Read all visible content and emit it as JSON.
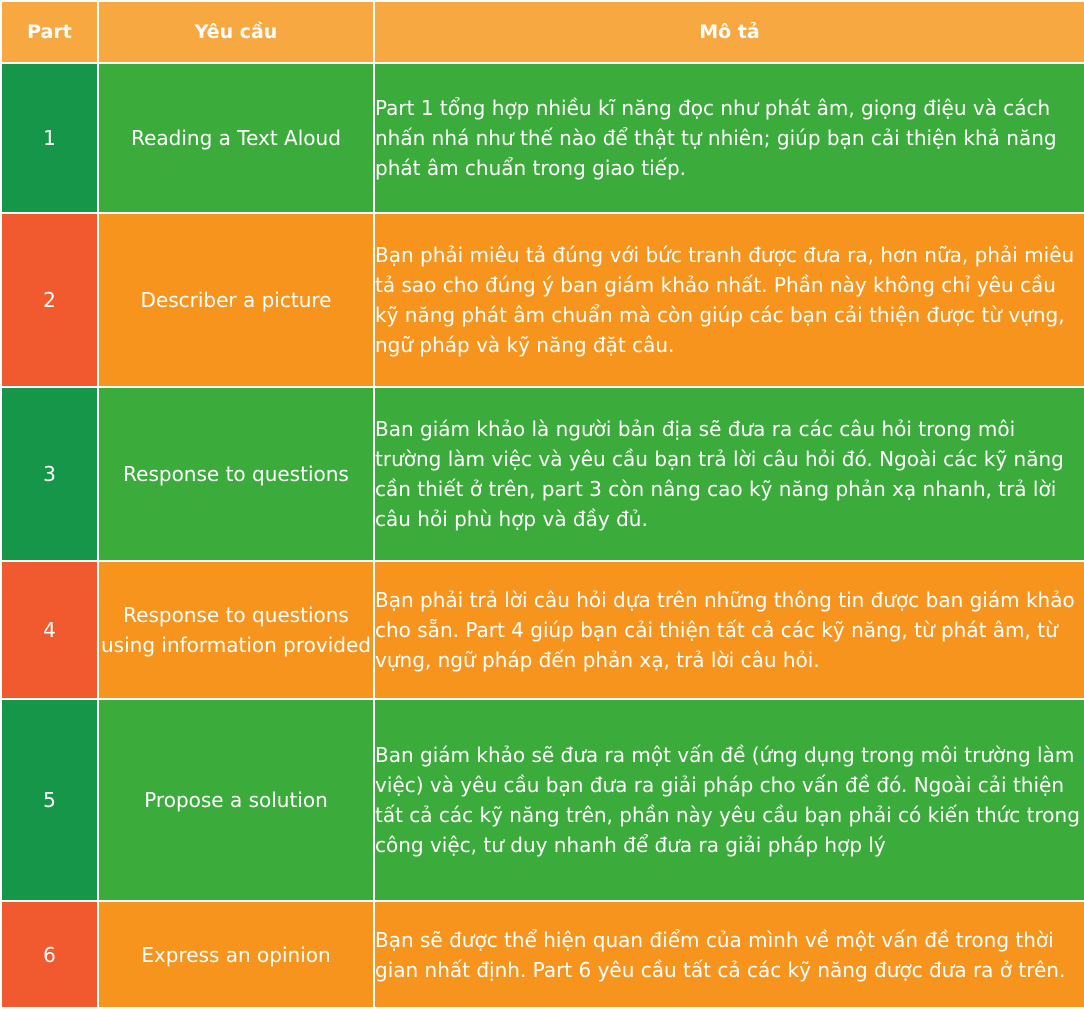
{
  "header": {
    "part": "Part",
    "requirement": "Yêu cầu",
    "description": "Mô tả"
  },
  "colors": {
    "header": "#f8a840",
    "green_dark": "#169648",
    "green": "#3bab3b",
    "orange_dark": "#f05a2e",
    "orange": "#f7941d"
  },
  "rows": [
    {
      "part": "1",
      "requirement": "Reading a Text Aloud",
      "description": "Part 1 tổng hợp nhiều kĩ năng đọc như phát âm, giọng điệu và cách nhấn nhá như thế nào để thật tự nhiên; giúp bạn cải thiện khả năng phát âm chuẩn trong giao tiếp."
    },
    {
      "part": "2",
      "requirement": "Describer a picture",
      "description": "Bạn phải miêu tả đúng với bức tranh được đưa ra, hơn nữa, phải miêu tả sao cho đúng ý ban giám khảo nhất. Phần này không chỉ yêu cầu kỹ năng phát âm chuẩn mà còn giúp các bạn cải thiện được từ vựng, ngữ pháp và kỹ năng đặt câu."
    },
    {
      "part": "3",
      "requirement": "Response to questions",
      "description": "Ban giám khảo là người bản địa sẽ đưa ra các câu hỏi trong môi trường làm việc và yêu cầu bạn trả lời câu hỏi đó. Ngoài các kỹ năng cần thiết ở trên, part 3 còn nâng cao kỹ năng phản xạ nhanh, trả lời câu hỏi phù hợp và đầy đủ."
    },
    {
      "part": "4",
      "requirement": "Response to questions using information provided",
      "description": "Bạn phải trả lời câu hỏi dựa trên những thông tin được ban giám khảo cho sẵn. Part 4 giúp bạn cải thiện tất cả các kỹ năng, từ phát âm, từ vựng, ngữ pháp đến phản xạ, trả lời câu hỏi."
    },
    {
      "part": "5",
      "requirement": "Propose a solution",
      "description": "Ban giám khảo sẽ đưa ra một vấn đề (ứng dụng trong môi trường làm việc) và yêu cầu bạn đưa ra giải pháp cho vấn đề đó. Ngoài cải thiện tất cả các kỹ năng trên, phần này yêu cầu bạn phải có kiến thức trong công việc, tư duy nhanh để đưa ra giải pháp hợp lý"
    },
    {
      "part": "6",
      "requirement": "Express an opinion",
      "description": "Bạn sẽ được thể hiện quan điểm của mình về một vấn đề trong thời gian nhất định. Part 6 yêu cầu tất cả các kỹ năng được đưa ra ở trên."
    }
  ]
}
